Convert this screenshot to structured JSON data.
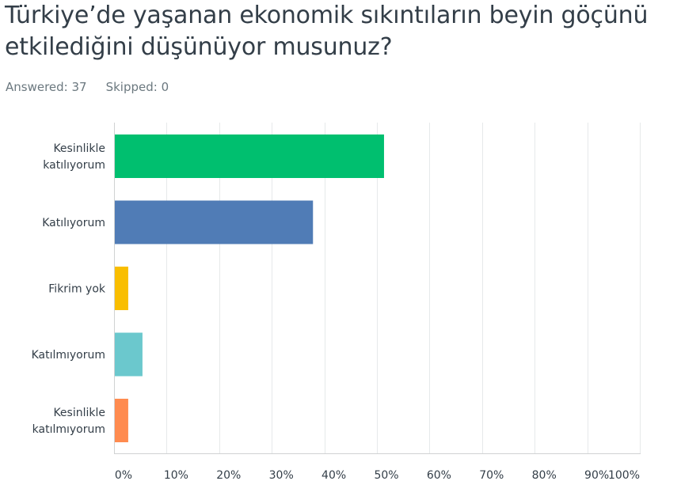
{
  "question": {
    "title": "Türkiye’de yaşanan ekonomik sıkıntıların beyin göçünü etkilediğini düşünüyor musunuz?"
  },
  "stats": {
    "answered": "Answered: 37",
    "skipped": "Skipped: 0"
  },
  "chart_data": {
    "type": "bar",
    "orientation": "horizontal",
    "categories": [
      [
        "Kesinlikle",
        "katılıyorum"
      ],
      [
        "Katılıyorum"
      ],
      [
        "Fikrim yok"
      ],
      [
        "Katılmıyorum"
      ],
      [
        "Kesinlikle",
        "katılmıyorum"
      ]
    ],
    "values": [
      51.35,
      37.84,
      2.7,
      5.41,
      2.7
    ],
    "colors": [
      "#00bf6f",
      "#507cb6",
      "#f9be00",
      "#6bc8cd",
      "#ff8b4f"
    ],
    "xlim": [
      0,
      100
    ],
    "ticks": [
      0,
      10,
      20,
      30,
      40,
      50,
      60,
      70,
      80,
      90,
      100
    ],
    "tick_labels": [
      "0%",
      "10%",
      "20%",
      "30%",
      "40%",
      "50%",
      "60%",
      "70%",
      "80%",
      "90%",
      "100%"
    ],
    "grid": true,
    "title": "",
    "xlabel": "",
    "ylabel": ""
  }
}
